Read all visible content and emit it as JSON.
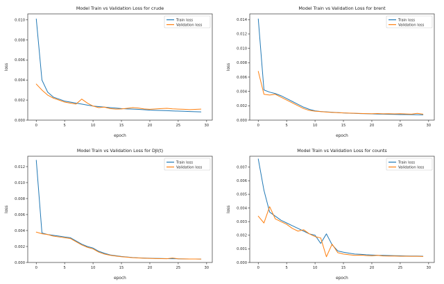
{
  "figure": {
    "background": "#ffffff",
    "layout": "2x2 grid of matplotlib line plots"
  },
  "colors": {
    "train": "#1f77b4",
    "validation": "#ff7f0e",
    "axis": "#333333",
    "tick_text": "#262626"
  },
  "chart_data": [
    {
      "type": "line",
      "title": "Model Train vs Validation Loss for crude",
      "xlabel": "epoch",
      "ylabel": "loss",
      "xlim": [
        -1.5,
        31
      ],
      "ylim": [
        0,
        0.0106
      ],
      "xticks": [
        0,
        5,
        10,
        15,
        20,
        25,
        30
      ],
      "yticks": [
        0.0,
        0.002,
        0.004,
        0.006,
        0.008,
        0.01
      ],
      "grid": false,
      "legend": {
        "position": "upper right",
        "entries": [
          "Train loss",
          "Validation loss"
        ]
      },
      "x": [
        0,
        1,
        2,
        3,
        4,
        5,
        6,
        7,
        8,
        9,
        10,
        11,
        12,
        13,
        14,
        15,
        16,
        17,
        18,
        19,
        20,
        21,
        22,
        23,
        24,
        25,
        26,
        27,
        28,
        29
      ],
      "series": [
        {
          "name": "Train loss",
          "color": "#1f77b4",
          "values": [
            0.0101,
            0.004,
            0.0028,
            0.0023,
            0.0021,
            0.0019,
            0.0018,
            0.0017,
            0.0016,
            0.0015,
            0.0014,
            0.00135,
            0.0013,
            0.00125,
            0.0012,
            0.00115,
            0.00112,
            0.0011,
            0.00107,
            0.00104,
            0.001,
            0.00098,
            0.00096,
            0.00094,
            0.00092,
            0.0009,
            0.00088,
            0.00086,
            0.00084,
            0.00082
          ]
        },
        {
          "name": "Validation loss",
          "color": "#ff7f0e",
          "values": [
            0.0036,
            0.003,
            0.0025,
            0.0022,
            0.002,
            0.0018,
            0.0017,
            0.0016,
            0.0021,
            0.0017,
            0.0014,
            0.00125,
            0.0013,
            0.00115,
            0.0011,
            0.00112,
            0.00118,
            0.00125,
            0.0012,
            0.00112,
            0.00108,
            0.00112,
            0.00115,
            0.00118,
            0.00113,
            0.0011,
            0.00108,
            0.00105,
            0.00107,
            0.0011
          ]
        }
      ]
    },
    {
      "type": "line",
      "title": "Model Train vs Validation Loss for brent",
      "xlabel": "epoch",
      "ylabel": "loss",
      "xlim": [
        -1.5,
        31
      ],
      "ylim": [
        0,
        0.0148
      ],
      "xticks": [
        0,
        5,
        10,
        15,
        20,
        25,
        30
      ],
      "yticks": [
        0.0,
        0.002,
        0.004,
        0.006,
        0.008,
        0.01,
        0.012,
        0.014
      ],
      "grid": false,
      "legend": {
        "position": "upper right",
        "entries": [
          "Train loss",
          "Validation loss"
        ]
      },
      "x": [
        0,
        1,
        2,
        3,
        4,
        5,
        6,
        7,
        8,
        9,
        10,
        11,
        12,
        13,
        14,
        15,
        16,
        17,
        18,
        19,
        20,
        21,
        22,
        23,
        24,
        25,
        26,
        27,
        28,
        29
      ],
      "series": [
        {
          "name": "Train loss",
          "color": "#1f77b4",
          "values": [
            0.0141,
            0.0042,
            0.0039,
            0.0037,
            0.0034,
            0.003,
            0.0026,
            0.0022,
            0.0018,
            0.0015,
            0.0013,
            0.0012,
            0.00115,
            0.0011,
            0.00105,
            0.001,
            0.00097,
            0.00094,
            0.00091,
            0.00089,
            0.00087,
            0.00085,
            0.00083,
            0.00081,
            0.0008,
            0.00078,
            0.00077,
            0.00076,
            0.00075,
            0.00074
          ]
        },
        {
          "name": "Validation loss",
          "color": "#ff7f0e",
          "values": [
            0.0068,
            0.0036,
            0.0035,
            0.0036,
            0.0032,
            0.0028,
            0.0024,
            0.002,
            0.0016,
            0.00135,
            0.00125,
            0.00118,
            0.00112,
            0.00108,
            0.00104,
            0.001,
            0.00098,
            0.00096,
            0.00093,
            0.00091,
            0.0009,
            0.00092,
            0.00088,
            0.0009,
            0.00087,
            0.00089,
            0.00086,
            0.00084,
            0.00094,
            0.00083
          ]
        }
      ]
    },
    {
      "type": "line",
      "title": "Model Train vs Validation Loss for DJI(t)",
      "xlabel": "epoch",
      "ylabel": "loss",
      "xlim": [
        -1.5,
        31
      ],
      "ylim": [
        0,
        0.0133
      ],
      "xticks": [
        0,
        5,
        10,
        15,
        20,
        25,
        30
      ],
      "yticks": [
        0.0,
        0.002,
        0.004,
        0.006,
        0.008,
        0.01,
        0.012
      ],
      "grid": false,
      "legend": {
        "position": "upper right",
        "entries": [
          "Train loss",
          "Validation loss"
        ]
      },
      "x": [
        0,
        1,
        2,
        3,
        4,
        5,
        6,
        7,
        8,
        9,
        10,
        11,
        12,
        13,
        14,
        15,
        16,
        17,
        18,
        19,
        20,
        21,
        22,
        23,
        24,
        25,
        26,
        27,
        28,
        29
      ],
      "series": [
        {
          "name": "Train loss",
          "color": "#1f77b4",
          "values": [
            0.0128,
            0.0037,
            0.0035,
            0.0034,
            0.0033,
            0.0032,
            0.0031,
            0.0027,
            0.0023,
            0.002,
            0.0018,
            0.0014,
            0.00115,
            0.00095,
            0.00085,
            0.00075,
            0.00068,
            0.00062,
            0.00058,
            0.00055,
            0.00053,
            0.00051,
            0.0005,
            0.00048,
            0.00047,
            0.00046,
            0.00045,
            0.00044,
            0.00043,
            0.00042
          ]
        },
        {
          "name": "Validation loss",
          "color": "#ff7f0e",
          "values": [
            0.0038,
            0.0036,
            0.0035,
            0.0033,
            0.0032,
            0.0031,
            0.003,
            0.0026,
            0.0022,
            0.0019,
            0.0017,
            0.0013,
            0.00105,
            0.0009,
            0.0008,
            0.00072,
            0.00066,
            0.0006,
            0.00056,
            0.00053,
            0.00051,
            0.00049,
            0.00048,
            0.00047,
            0.00056,
            0.00046,
            0.00045,
            0.00044,
            0.00043,
            0.00042
          ]
        }
      ]
    },
    {
      "type": "line",
      "title": "Model Train vs Validation Loss for counts",
      "xlabel": "epoch",
      "ylabel": "loss",
      "xlim": [
        -1.5,
        31
      ],
      "ylim": [
        0,
        0.0078
      ],
      "xticks": [
        0,
        5,
        10,
        15,
        20,
        25,
        30
      ],
      "yticks": [
        0.0,
        0.001,
        0.002,
        0.003,
        0.004,
        0.005,
        0.006,
        0.007
      ],
      "grid": false,
      "legend": {
        "position": "upper right",
        "entries": [
          "Train loss",
          "Validation loss"
        ]
      },
      "x": [
        0,
        1,
        2,
        3,
        4,
        5,
        6,
        7,
        8,
        9,
        10,
        11,
        12,
        13,
        14,
        15,
        16,
        17,
        18,
        19,
        20,
        21,
        22,
        23,
        24,
        25,
        26,
        27,
        28,
        29
      ],
      "series": [
        {
          "name": "Train loss",
          "color": "#1f77b4",
          "values": [
            0.0076,
            0.0053,
            0.0037,
            0.0034,
            0.0031,
            0.0029,
            0.0027,
            0.0025,
            0.0023,
            0.0021,
            0.002,
            0.0014,
            0.0021,
            0.0013,
            0.00085,
            0.00075,
            0.00068,
            0.00062,
            0.0006,
            0.00057,
            0.00055,
            0.00053,
            0.00052,
            0.00051,
            0.0005,
            0.00049,
            0.00048,
            0.00047,
            0.00047,
            0.00046
          ]
        },
        {
          "name": "Validation loss",
          "color": "#ff7f0e",
          "values": [
            0.0034,
            0.0029,
            0.0041,
            0.0032,
            0.003,
            0.0028,
            0.0025,
            0.0023,
            0.0024,
            0.0021,
            0.0019,
            0.0018,
            0.00042,
            0.00135,
            0.00072,
            0.00062,
            0.00057,
            0.00052,
            0.00054,
            0.00051,
            0.00049,
            0.00052,
            0.00048,
            0.00047,
            0.00047,
            0.00046,
            0.00046,
            0.00045,
            0.00045,
            0.00044
          ]
        }
      ]
    }
  ]
}
